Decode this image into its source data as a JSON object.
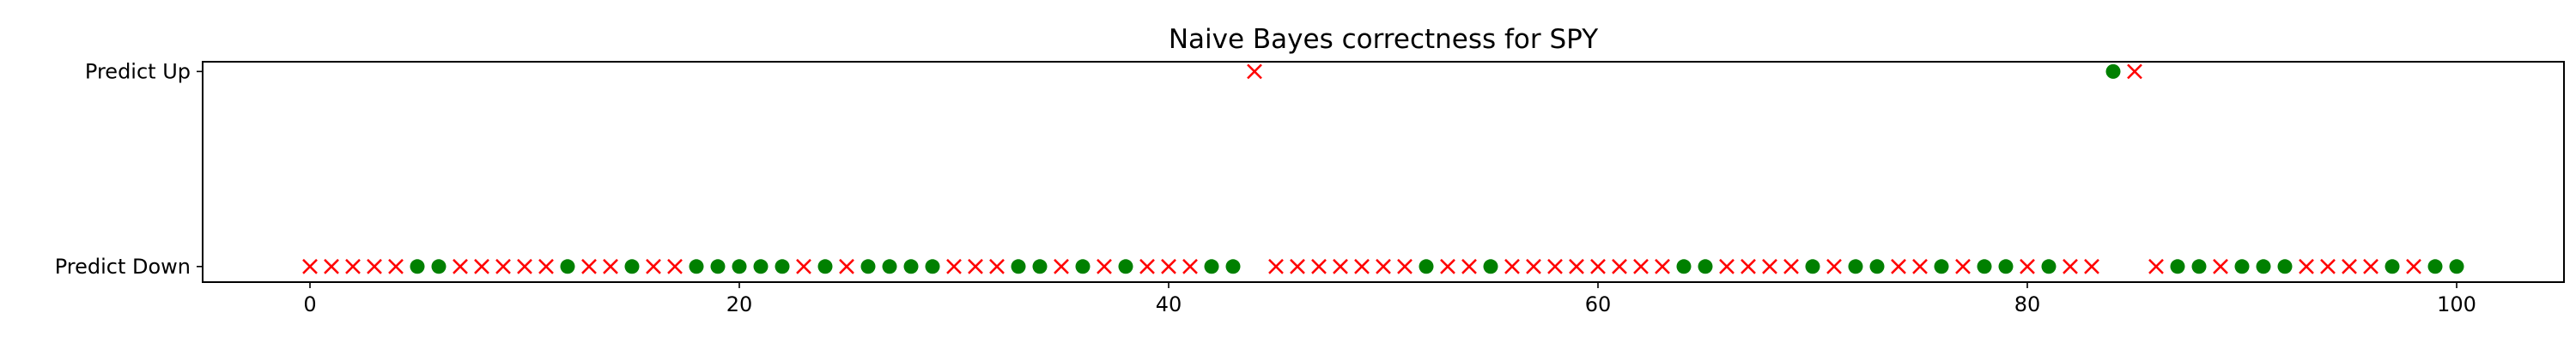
{
  "chart_data": {
    "type": "scatter",
    "title": "Naive Bayes correctness for SPY",
    "xlabel": "",
    "ylabel": "",
    "xlim": [
      -5,
      105
    ],
    "ylim": [
      -0.08,
      1.05
    ],
    "xticks": [
      0,
      20,
      40,
      60,
      80,
      100
    ],
    "yticks": [
      {
        "value": 0,
        "label": "Predict Down"
      },
      {
        "value": 1,
        "label": "Predict Up"
      }
    ],
    "grid": false,
    "legend": "none",
    "series": [
      {
        "marker": "o",
        "color": "#008000",
        "points": [
          {
            "x": 5,
            "y": 0
          },
          {
            "x": 6,
            "y": 0
          },
          {
            "x": 12,
            "y": 0
          },
          {
            "x": 15,
            "y": 0
          },
          {
            "x": 18,
            "y": 0
          },
          {
            "x": 19,
            "y": 0
          },
          {
            "x": 20,
            "y": 0
          },
          {
            "x": 21,
            "y": 0
          },
          {
            "x": 22,
            "y": 0
          },
          {
            "x": 24,
            "y": 0
          },
          {
            "x": 26,
            "y": 0
          },
          {
            "x": 27,
            "y": 0
          },
          {
            "x": 28,
            "y": 0
          },
          {
            "x": 29,
            "y": 0
          },
          {
            "x": 33,
            "y": 0
          },
          {
            "x": 34,
            "y": 0
          },
          {
            "x": 36,
            "y": 0
          },
          {
            "x": 38,
            "y": 0
          },
          {
            "x": 42,
            "y": 0
          },
          {
            "x": 43,
            "y": 0
          },
          {
            "x": 52,
            "y": 0
          },
          {
            "x": 55,
            "y": 0
          },
          {
            "x": 64,
            "y": 0
          },
          {
            "x": 65,
            "y": 0
          },
          {
            "x": 70,
            "y": 0
          },
          {
            "x": 72,
            "y": 0
          },
          {
            "x": 73,
            "y": 0
          },
          {
            "x": 76,
            "y": 0
          },
          {
            "x": 78,
            "y": 0
          },
          {
            "x": 79,
            "y": 0
          },
          {
            "x": 81,
            "y": 0
          },
          {
            "x": 84,
            "y": 1
          },
          {
            "x": 87,
            "y": 0
          },
          {
            "x": 88,
            "y": 0
          },
          {
            "x": 90,
            "y": 0
          },
          {
            "x": 91,
            "y": 0
          },
          {
            "x": 92,
            "y": 0
          },
          {
            "x": 97,
            "y": 0
          },
          {
            "x": 99,
            "y": 0
          },
          {
            "x": 100,
            "y": 0
          }
        ]
      },
      {
        "marker": "x",
        "color": "#ff0000",
        "points": [
          {
            "x": 0,
            "y": 0
          },
          {
            "x": 1,
            "y": 0
          },
          {
            "x": 2,
            "y": 0
          },
          {
            "x": 3,
            "y": 0
          },
          {
            "x": 4,
            "y": 0
          },
          {
            "x": 7,
            "y": 0
          },
          {
            "x": 8,
            "y": 0
          },
          {
            "x": 9,
            "y": 0
          },
          {
            "x": 10,
            "y": 0
          },
          {
            "x": 11,
            "y": 0
          },
          {
            "x": 13,
            "y": 0
          },
          {
            "x": 14,
            "y": 0
          },
          {
            "x": 16,
            "y": 0
          },
          {
            "x": 17,
            "y": 0
          },
          {
            "x": 23,
            "y": 0
          },
          {
            "x": 25,
            "y": 0
          },
          {
            "x": 30,
            "y": 0
          },
          {
            "x": 31,
            "y": 0
          },
          {
            "x": 32,
            "y": 0
          },
          {
            "x": 35,
            "y": 0
          },
          {
            "x": 37,
            "y": 0
          },
          {
            "x": 39,
            "y": 0
          },
          {
            "x": 40,
            "y": 0
          },
          {
            "x": 41,
            "y": 0
          },
          {
            "x": 44,
            "y": 1
          },
          {
            "x": 45,
            "y": 0
          },
          {
            "x": 46,
            "y": 0
          },
          {
            "x": 47,
            "y": 0
          },
          {
            "x": 48,
            "y": 0
          },
          {
            "x": 49,
            "y": 0
          },
          {
            "x": 50,
            "y": 0
          },
          {
            "x": 51,
            "y": 0
          },
          {
            "x": 53,
            "y": 0
          },
          {
            "x": 54,
            "y": 0
          },
          {
            "x": 56,
            "y": 0
          },
          {
            "x": 57,
            "y": 0
          },
          {
            "x": 58,
            "y": 0
          },
          {
            "x": 59,
            "y": 0
          },
          {
            "x": 60,
            "y": 0
          },
          {
            "x": 61,
            "y": 0
          },
          {
            "x": 62,
            "y": 0
          },
          {
            "x": 63,
            "y": 0
          },
          {
            "x": 66,
            "y": 0
          },
          {
            "x": 67,
            "y": 0
          },
          {
            "x": 68,
            "y": 0
          },
          {
            "x": 69,
            "y": 0
          },
          {
            "x": 71,
            "y": 0
          },
          {
            "x": 74,
            "y": 0
          },
          {
            "x": 75,
            "y": 0
          },
          {
            "x": 77,
            "y": 0
          },
          {
            "x": 80,
            "y": 0
          },
          {
            "x": 82,
            "y": 0
          },
          {
            "x": 83,
            "y": 0
          },
          {
            "x": 85,
            "y": 1
          },
          {
            "x": 86,
            "y": 0
          },
          {
            "x": 89,
            "y": 0
          },
          {
            "x": 93,
            "y": 0
          },
          {
            "x": 94,
            "y": 0
          },
          {
            "x": 95,
            "y": 0
          },
          {
            "x": 96,
            "y": 0
          },
          {
            "x": 98,
            "y": 0
          }
        ]
      }
    ]
  }
}
